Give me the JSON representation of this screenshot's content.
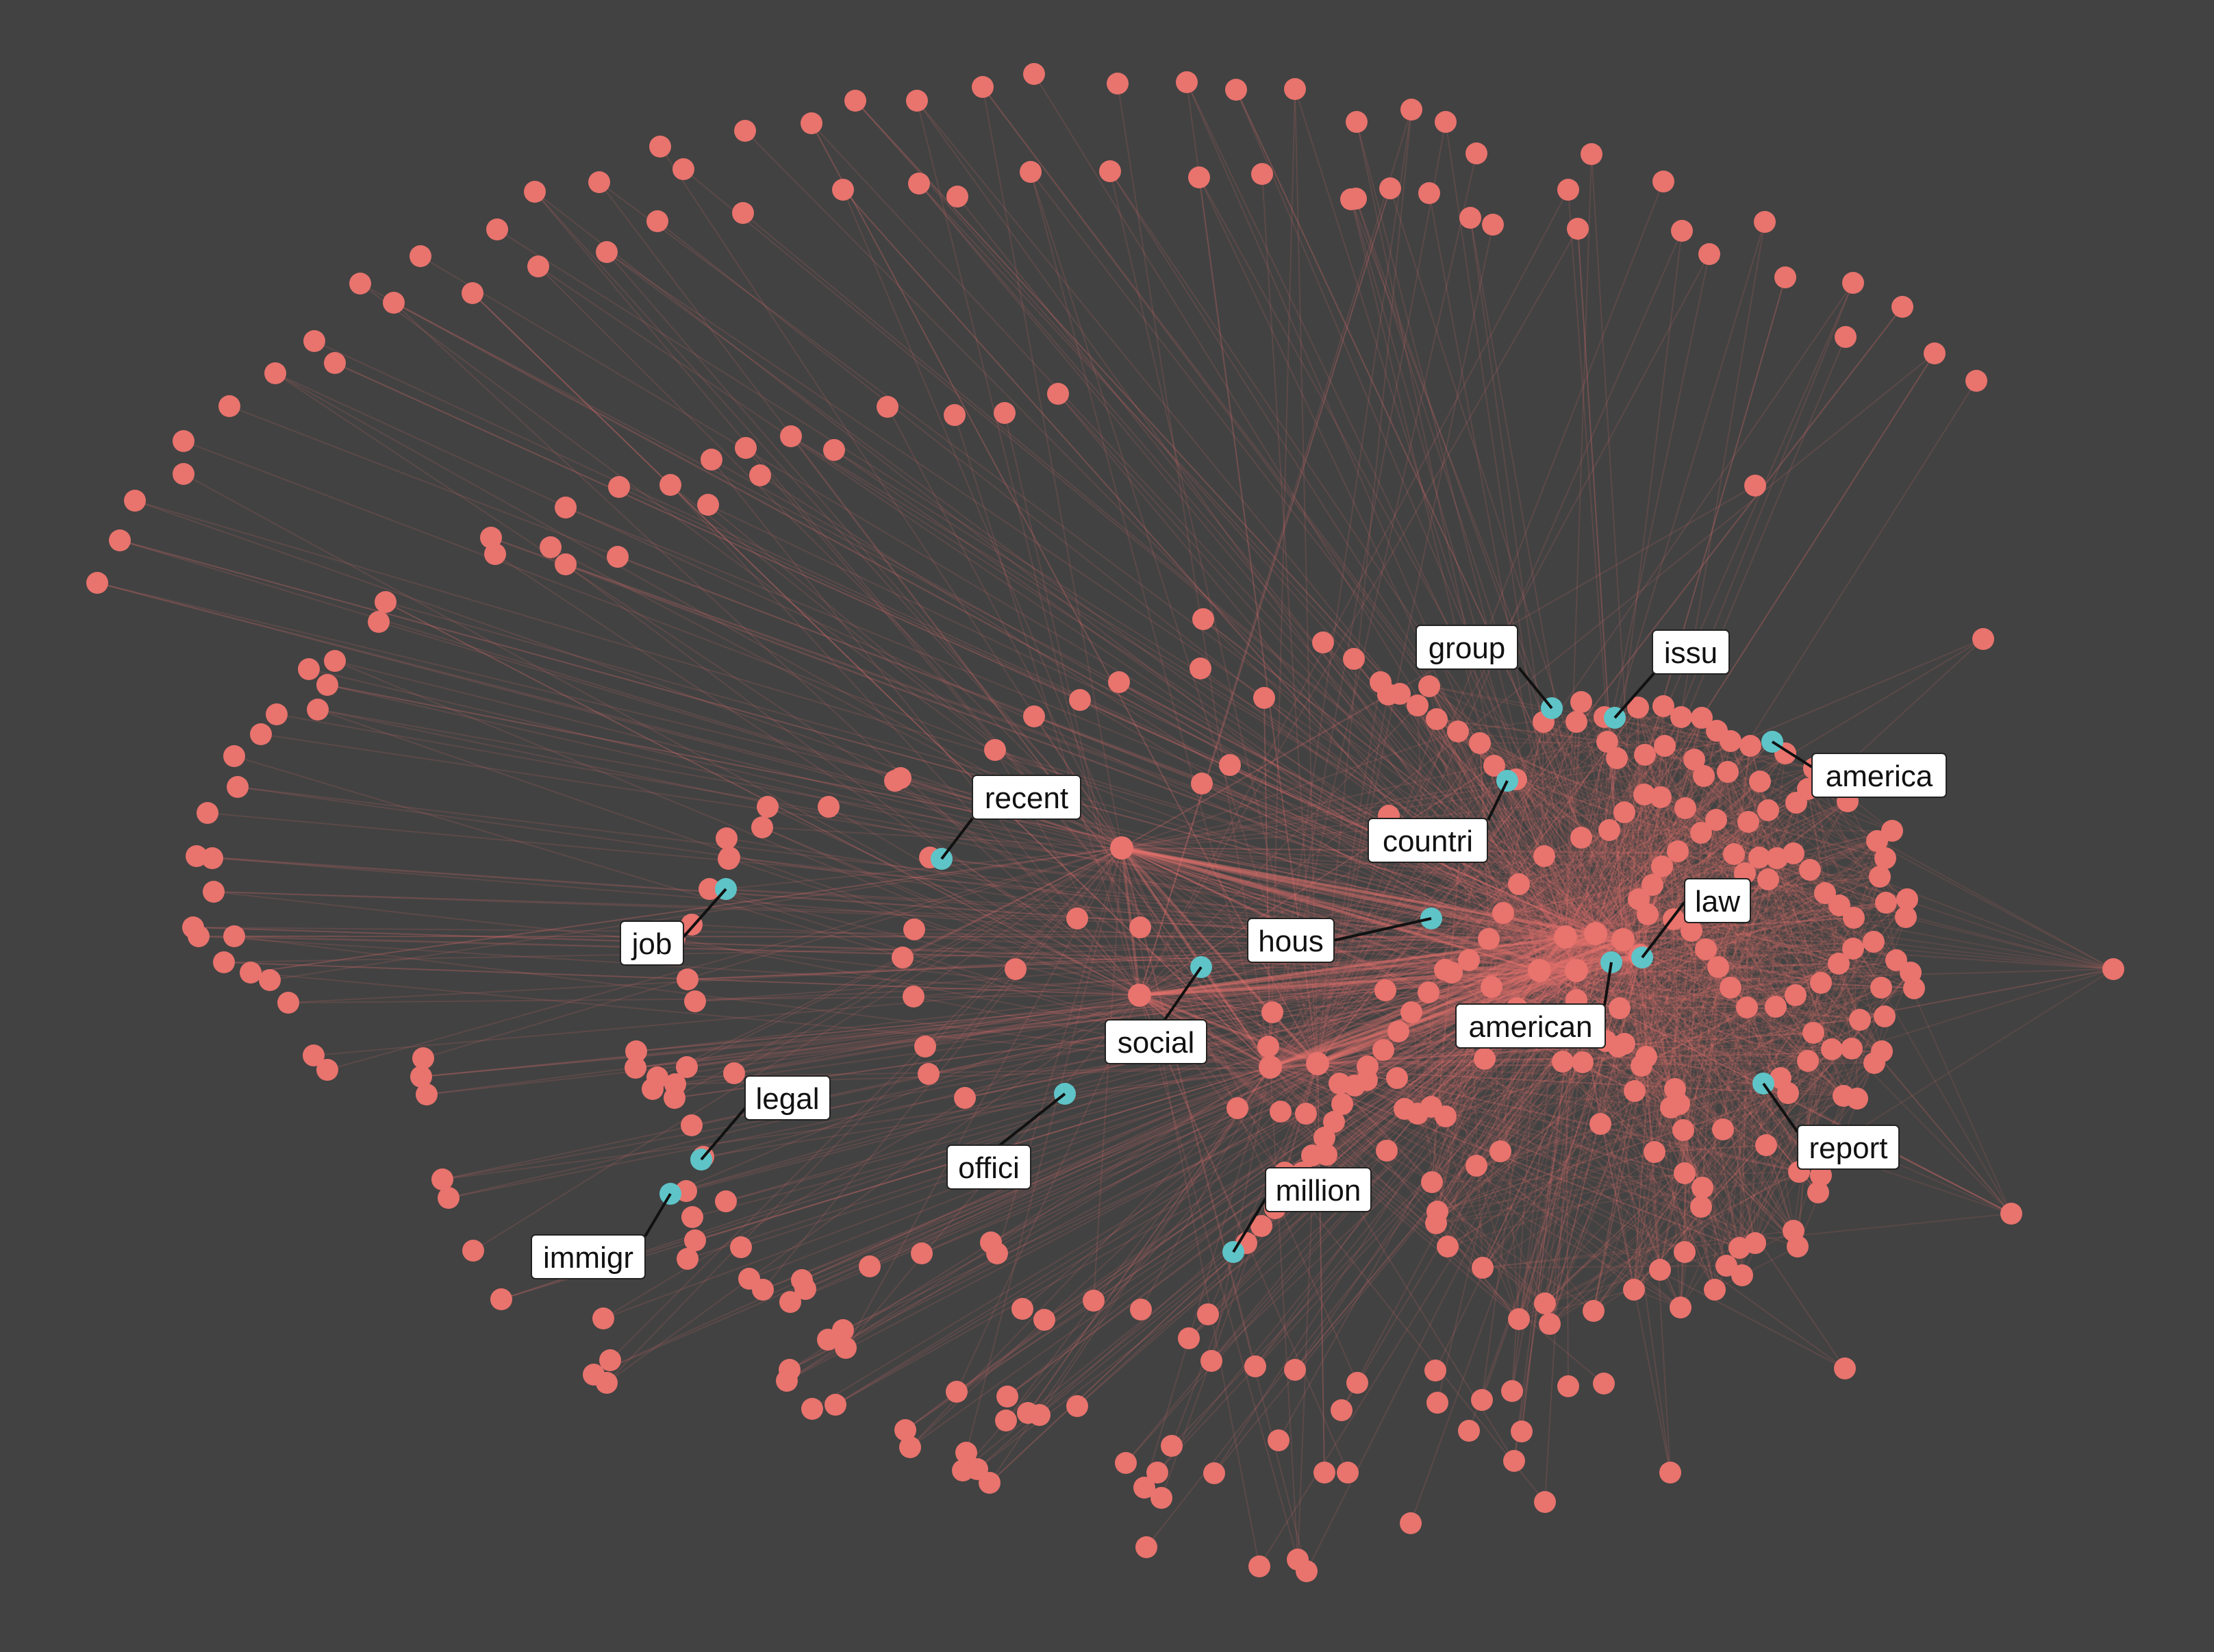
{
  "colors": {
    "background": "#424242",
    "node": "#E9736D",
    "highlight_node": "#5FC4C8",
    "edge": "#E9736D",
    "label_box": "#FFFFFF",
    "label_border": "#222222",
    "leader_line": "#111111"
  },
  "network": {
    "layout": "force-directed",
    "labeled_terms": [
      "group",
      "issu",
      "america",
      "countri",
      "recent",
      "law",
      "hous",
      "job",
      "american",
      "social",
      "legal",
      "report",
      "offici",
      "million",
      "immigr"
    ]
  }
}
